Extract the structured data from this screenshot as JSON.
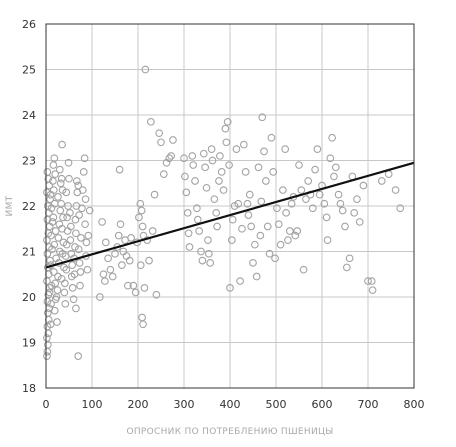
{
  "chart_data": {
    "type": "scatter",
    "title": "",
    "xlabel": "ОПРОСНИК ПО ПОТРЕБЛЕНИЮ ПШЕНИЦЫ",
    "ylabel": "ИМТ",
    "xlim": [
      0,
      800
    ],
    "ylim": [
      18,
      26
    ],
    "x_ticks": [
      "0",
      "100",
      "200",
      "300",
      "400",
      "500",
      "600",
      "700",
      "800"
    ],
    "y_ticks": [
      "18",
      "19",
      "20",
      "21",
      "22",
      "23",
      "24",
      "25",
      "26"
    ],
    "grid": true,
    "marker": "open-circle",
    "colors": {
      "points": "#a3a3a3",
      "trend": "#111111",
      "grid": "#c8c8c8",
      "frame": "#333333"
    },
    "trendline": {
      "x": [
        0,
        800
      ],
      "y": [
        20.65,
        22.95
      ]
    },
    "points": [
      [
        2,
        18.7
      ],
      [
        3,
        18.8
      ],
      [
        4,
        18.95
      ],
      [
        2,
        19.1
      ],
      [
        5,
        19.2
      ],
      [
        3,
        19.35
      ],
      [
        6,
        19.5
      ],
      [
        4,
        19.65
      ],
      [
        7,
        19.75
      ],
      [
        3,
        19.9
      ],
      [
        5,
        20.05
      ],
      [
        8,
        20.2
      ],
      [
        2,
        20.35
      ],
      [
        6,
        20.5
      ],
      [
        4,
        20.65
      ],
      [
        9,
        20.8
      ],
      [
        3,
        20.95
      ],
      [
        7,
        21.1
      ],
      [
        2,
        21.25
      ],
      [
        5,
        21.4
      ],
      [
        8,
        21.55
      ],
      [
        3,
        21.7
      ],
      [
        6,
        21.85
      ],
      [
        4,
        22.0
      ],
      [
        9,
        22.15
      ],
      [
        2,
        22.3
      ],
      [
        7,
        22.45
      ],
      [
        5,
        22.6
      ],
      [
        3,
        22.75
      ],
      [
        8,
        20.1
      ],
      [
        10,
        19.4
      ],
      [
        11,
        19.85
      ],
      [
        12,
        20.25
      ],
      [
        10,
        20.7
      ],
      [
        13,
        21.05
      ],
      [
        11,
        21.35
      ],
      [
        14,
        21.65
      ],
      [
        12,
        21.95
      ],
      [
        10,
        22.25
      ],
      [
        15,
        22.55
      ],
      [
        16,
        22.9
      ],
      [
        18,
        23.05
      ],
      [
        20,
        22.7
      ],
      [
        17,
        22.35
      ],
      [
        19,
        22.05
      ],
      [
        16,
        21.75
      ],
      [
        21,
        21.45
      ],
      [
        18,
        21.15
      ],
      [
        22,
        20.85
      ],
      [
        17,
        20.55
      ],
      [
        20,
        20.3
      ],
      [
        23,
        20.0
      ],
      [
        19,
        19.7
      ],
      [
        24,
        19.45
      ],
      [
        21,
        19.95
      ],
      [
        25,
        20.15
      ],
      [
        26,
        20.45
      ],
      [
        28,
        20.75
      ],
      [
        30,
        21.0
      ],
      [
        27,
        21.3
      ],
      [
        29,
        21.6
      ],
      [
        31,
        21.9
      ],
      [
        26,
        22.2
      ],
      [
        32,
        22.5
      ],
      [
        30,
        22.8
      ],
      [
        35,
        23.35
      ],
      [
        34,
        22.6
      ],
      [
        36,
        22.35
      ],
      [
        33,
        22.05
      ],
      [
        37,
        21.75
      ],
      [
        35,
        21.5
      ],
      [
        38,
        21.2
      ],
      [
        36,
        20.95
      ],
      [
        39,
        20.65
      ],
      [
        34,
        20.4
      ],
      [
        40,
        20.1
      ],
      [
        42,
        19.85
      ],
      [
        41,
        20.3
      ],
      [
        44,
        20.6
      ],
      [
        43,
        20.9
      ],
      [
        45,
        21.15
      ],
      [
        47,
        21.45
      ],
      [
        46,
        21.75
      ],
      [
        48,
        22.0
      ],
      [
        44,
        22.3
      ],
      [
        50,
        22.6
      ],
      [
        49,
        22.95
      ],
      [
        52,
        21.85
      ],
      [
        54,
        21.55
      ],
      [
        53,
        21.25
      ],
      [
        55,
        20.95
      ],
      [
        57,
        20.7
      ],
      [
        56,
        20.45
      ],
      [
        58,
        20.2
      ],
      [
        60,
        19.95
      ],
      [
        62,
        20.5
      ],
      [
        61,
        20.85
      ],
      [
        63,
        21.1
      ],
      [
        65,
        21.4
      ],
      [
        64,
        21.7
      ],
      [
        66,
        22.0
      ],
      [
        68,
        22.3
      ],
      [
        67,
        22.55
      ],
      [
        70,
        22.45
      ],
      [
        72,
        21.8
      ],
      [
        71,
        21.05
      ],
      [
        73,
        20.75
      ],
      [
        75,
        20.55
      ],
      [
        74,
        20.25
      ],
      [
        76,
        21.3
      ],
      [
        65,
        19.75
      ],
      [
        70,
        18.7
      ],
      [
        78,
        21.95
      ],
      [
        80,
        22.35
      ],
      [
        82,
        22.75
      ],
      [
        84,
        23.05
      ],
      [
        86,
        22.15
      ],
      [
        85,
        21.6
      ],
      [
        88,
        21.2
      ],
      [
        87,
        20.9
      ],
      [
        90,
        20.6
      ],
      [
        92,
        21.35
      ],
      [
        95,
        21.9
      ],
      [
        117,
        20.0
      ],
      [
        122,
        21.65
      ],
      [
        125,
        20.5
      ],
      [
        128,
        20.35
      ],
      [
        130,
        21.2
      ],
      [
        135,
        20.85
      ],
      [
        140,
        20.6
      ],
      [
        145,
        20.45
      ],
      [
        150,
        20.95
      ],
      [
        155,
        21.1
      ],
      [
        160,
        22.8
      ],
      [
        162,
        21.6
      ],
      [
        158,
        21.35
      ],
      [
        165,
        20.7
      ],
      [
        168,
        21.0
      ],
      [
        172,
        21.25
      ],
      [
        175,
        20.9
      ],
      [
        178,
        20.25
      ],
      [
        182,
        20.8
      ],
      [
        185,
        21.3
      ],
      [
        190,
        20.25
      ],
      [
        195,
        20.1
      ],
      [
        198,
        21.2
      ],
      [
        202,
        21.75
      ],
      [
        205,
        22.05
      ],
      [
        208,
        21.9
      ],
      [
        210,
        21.55
      ],
      [
        212,
        21.35
      ],
      [
        206,
        20.7
      ],
      [
        214,
        20.2
      ],
      [
        209,
        19.55
      ],
      [
        211,
        19.4
      ],
      [
        216,
        25.0
      ],
      [
        220,
        21.25
      ],
      [
        224,
        20.8
      ],
      [
        228,
        23.85
      ],
      [
        232,
        21.45
      ],
      [
        236,
        22.25
      ],
      [
        240,
        20.05
      ],
      [
        246,
        23.6
      ],
      [
        250,
        23.4
      ],
      [
        256,
        22.7
      ],
      [
        262,
        22.95
      ],
      [
        268,
        23.05
      ],
      [
        272,
        23.1
      ],
      [
        276,
        23.45
      ],
      [
        300,
        23.05
      ],
      [
        302,
        22.65
      ],
      [
        305,
        22.3
      ],
      [
        308,
        21.85
      ],
      [
        310,
        21.4
      ],
      [
        312,
        21.1
      ],
      [
        318,
        23.1
      ],
      [
        320,
        22.9
      ],
      [
        324,
        22.55
      ],
      [
        328,
        21.95
      ],
      [
        330,
        21.7
      ],
      [
        333,
        21.45
      ],
      [
        337,
        21.0
      ],
      [
        340,
        20.8
      ],
      [
        343,
        23.15
      ],
      [
        346,
        22.85
      ],
      [
        349,
        22.4
      ],
      [
        352,
        21.25
      ],
      [
        354,
        20.95
      ],
      [
        357,
        20.75
      ],
      [
        360,
        23.25
      ],
      [
        362,
        23.0
      ],
      [
        366,
        22.15
      ],
      [
        370,
        21.85
      ],
      [
        372,
        21.55
      ],
      [
        376,
        22.55
      ],
      [
        378,
        23.1
      ],
      [
        382,
        22.75
      ],
      [
        386,
        22.35
      ],
      [
        390,
        23.7
      ],
      [
        392,
        23.4
      ],
      [
        395,
        23.85
      ],
      [
        398,
        22.9
      ],
      [
        400,
        20.2
      ],
      [
        404,
        21.25
      ],
      [
        406,
        21.7
      ],
      [
        410,
        22.0
      ],
      [
        414,
        23.25
      ],
      [
        418,
        22.05
      ],
      [
        422,
        20.35
      ],
      [
        426,
        21.5
      ],
      [
        430,
        23.35
      ],
      [
        434,
        22.75
      ],
      [
        438,
        22.05
      ],
      [
        440,
        21.8
      ],
      [
        443,
        22.25
      ],
      [
        446,
        21.55
      ],
      [
        450,
        20.75
      ],
      [
        454,
        21.15
      ],
      [
        458,
        20.45
      ],
      [
        462,
        22.85
      ],
      [
        466,
        21.35
      ],
      [
        468,
        22.1
      ],
      [
        470,
        23.95
      ],
      [
        474,
        23.2
      ],
      [
        478,
        22.55
      ],
      [
        482,
        21.55
      ],
      [
        486,
        20.95
      ],
      [
        490,
        23.5
      ],
      [
        494,
        22.75
      ],
      [
        498,
        20.85
      ],
      [
        502,
        21.95
      ],
      [
        506,
        21.6
      ],
      [
        510,
        21.15
      ],
      [
        515,
        22.35
      ],
      [
        520,
        23.25
      ],
      [
        522,
        21.85
      ],
      [
        526,
        21.25
      ],
      [
        530,
        21.45
      ],
      [
        534,
        22.05
      ],
      [
        538,
        22.2
      ],
      [
        542,
        21.35
      ],
      [
        546,
        21.45
      ],
      [
        550,
        22.9
      ],
      [
        555,
        22.35
      ],
      [
        560,
        20.6
      ],
      [
        565,
        22.15
      ],
      [
        570,
        22.55
      ],
      [
        575,
        22.25
      ],
      [
        580,
        21.95
      ],
      [
        585,
        22.8
      ],
      [
        590,
        23.25
      ],
      [
        595,
        22.25
      ],
      [
        600,
        22.45
      ],
      [
        605,
        22.05
      ],
      [
        610,
        21.75
      ],
      [
        612,
        21.25
      ],
      [
        618,
        23.05
      ],
      [
        622,
        23.5
      ],
      [
        626,
        22.65
      ],
      [
        630,
        22.85
      ],
      [
        636,
        22.25
      ],
      [
        640,
        22.05
      ],
      [
        645,
        21.9
      ],
      [
        650,
        21.55
      ],
      [
        654,
        20.65
      ],
      [
        660,
        20.85
      ],
      [
        666,
        22.65
      ],
      [
        670,
        21.85
      ],
      [
        676,
        22.15
      ],
      [
        682,
        21.65
      ],
      [
        690,
        22.45
      ],
      [
        700,
        20.35
      ],
      [
        708,
        20.35
      ],
      [
        710,
        20.15
      ],
      [
        730,
        22.55
      ],
      [
        745,
        22.7
      ],
      [
        760,
        22.35
      ],
      [
        770,
        21.95
      ]
    ]
  }
}
